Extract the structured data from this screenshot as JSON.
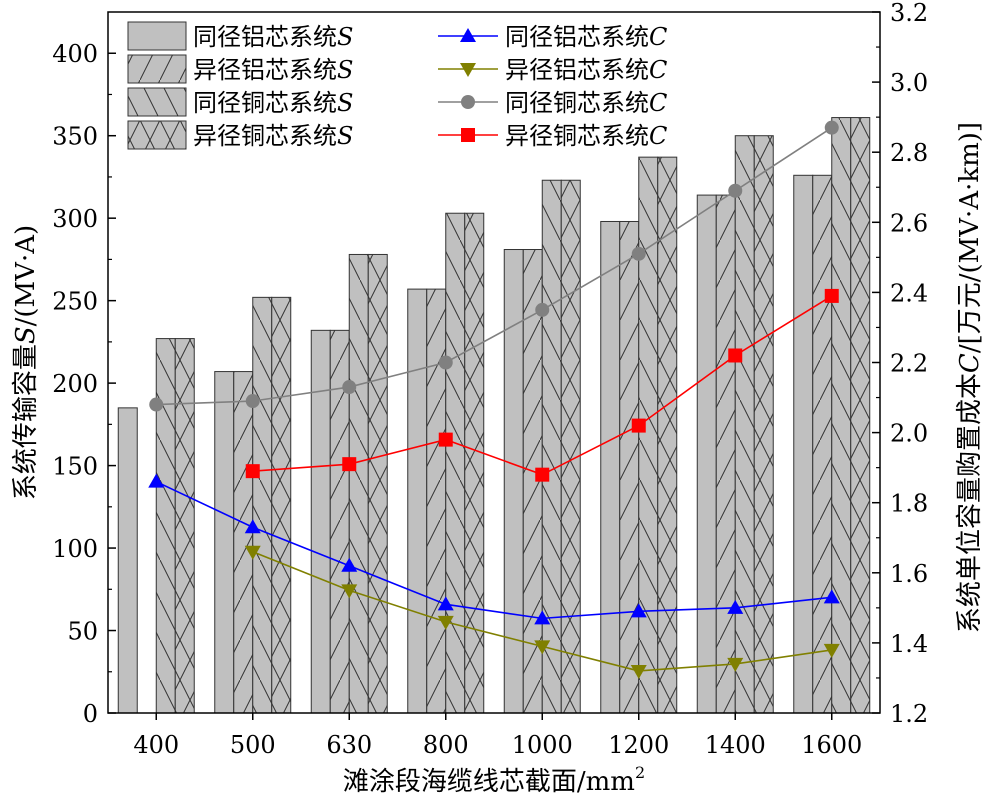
{
  "chart_data": {
    "type": "bar",
    "categories": [
      "400",
      "500",
      "630",
      "800",
      "1000",
      "1200",
      "1400",
      "1600"
    ],
    "xlabel": "滩涂段海缆线芯截面/mm",
    "xlabel_sup": "2",
    "ylabel_left": {
      "pre": "系统传输容量",
      "var": "S",
      "post": "/(MV·A)"
    },
    "ylabel_right": {
      "pre": "系统单位容量购置成本",
      "var": "C",
      "post": "/[万元/(MV·A·km)]"
    },
    "ylim_left": [
      0,
      425
    ],
    "yticks_left": [
      0,
      50,
      100,
      150,
      200,
      250,
      300,
      350,
      400
    ],
    "ylim_right": [
      1.2,
      3.2
    ],
    "yticks_right": [
      "1.2",
      "1.4",
      "1.6",
      "1.8",
      "2.0",
      "2.2",
      "2.4",
      "2.6",
      "2.8",
      "3.0",
      "3.2"
    ],
    "bar_series": [
      {
        "name": "同径铝芯系统",
        "var": "S",
        "pattern": "plain",
        "values": [
          185,
          207,
          232,
          257,
          281,
          298,
          314,
          326
        ]
      },
      {
        "name": "异径铝芯系统",
        "var": "S",
        "pattern": "fwd",
        "values": [
          null,
          207,
          232,
          257,
          281,
          298,
          314,
          326
        ]
      },
      {
        "name": "同径铜芯系统",
        "var": "S",
        "pattern": "back",
        "values": [
          227,
          252,
          278,
          303,
          323,
          337,
          350,
          361
        ]
      },
      {
        "name": "异径铜芯系统",
        "var": "S",
        "pattern": "cross",
        "values": [
          227,
          252,
          278,
          303,
          323,
          337,
          350,
          361
        ]
      }
    ],
    "line_series": [
      {
        "name": "同径铝芯系统",
        "var": "C",
        "color": "#0000ff",
        "marker": "triangle-up",
        "values": [
          1.86,
          1.73,
          1.62,
          1.51,
          1.47,
          1.49,
          1.5,
          1.53
        ]
      },
      {
        "name": "异径铝芯系统",
        "var": "C",
        "color": "#808000",
        "marker": "triangle-down",
        "values": [
          null,
          1.66,
          1.55,
          1.46,
          1.39,
          1.32,
          1.34,
          1.38
        ]
      },
      {
        "name": "同径铜芯系统",
        "var": "C",
        "color": "#808080",
        "marker": "circle",
        "values": [
          2.08,
          2.09,
          2.13,
          2.2,
          2.35,
          2.51,
          2.69,
          2.87
        ]
      },
      {
        "name": "异径铜芯系统",
        "var": "C",
        "color": "#ff0000",
        "marker": "square",
        "values": [
          null,
          1.89,
          1.91,
          1.98,
          1.88,
          2.02,
          2.22,
          2.39
        ]
      }
    ],
    "legend_placement": "top-left",
    "grid": false
  }
}
